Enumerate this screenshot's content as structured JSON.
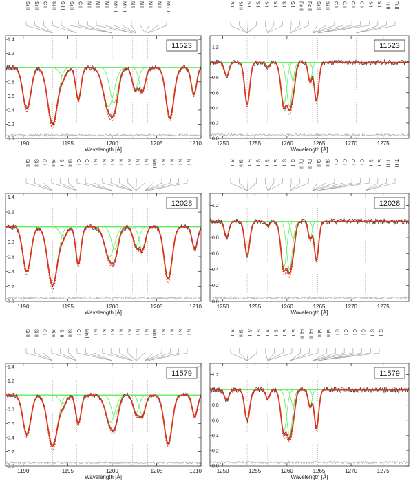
{
  "chart_data": [
    {
      "type": "line",
      "panel": "row1-left",
      "id_label": "11523",
      "xlabel": "Wavelength [Å]",
      "xlim": [
        1188,
        1210
      ],
      "ylim": [
        0.0,
        1.45
      ],
      "xticks": [
        1190,
        1195,
        1200,
        1205,
        1210
      ],
      "yticks": [
        0.0,
        0.2,
        0.4,
        0.6,
        0.8,
        1.0,
        1.2,
        1.4
      ],
      "line_ids": [
        "Si II",
        "Si II",
        "C I",
        "Si II",
        "S III",
        "Si II",
        "C I",
        "N I",
        "N I",
        "N I",
        "Mn II",
        "Mn II",
        "N I",
        "N I",
        "N I",
        "N I",
        "Mn II"
      ],
      "dotted_lines": [
        1193.3,
        1196.0,
        1200.0,
        1202.3,
        1202.7,
        1203.7,
        1204.0
      ],
      "absorptions": [
        {
          "center": 1190.4,
          "depth": 0.58,
          "width": 0.45
        },
        {
          "center": 1193.3,
          "depth": 0.8,
          "width": 0.55
        },
        {
          "center": 1194.5,
          "depth": 0.12,
          "width": 0.4
        },
        {
          "center": 1196.2,
          "depth": 0.45,
          "width": 0.3
        },
        {
          "center": 1199.6,
          "depth": 0.55,
          "width": 0.6
        },
        {
          "center": 1200.2,
          "depth": 0.5,
          "width": 0.45
        },
        {
          "center": 1202.6,
          "depth": 0.3,
          "width": 0.35
        },
        {
          "center": 1203.4,
          "depth": 0.33,
          "width": 0.35
        },
        {
          "center": 1206.5,
          "depth": 0.7,
          "width": 0.45
        },
        {
          "center": 1209.2,
          "depth": 0.38,
          "width": 0.3
        }
      ]
    },
    {
      "type": "line",
      "panel": "row1-right",
      "id_label": "11523",
      "xlabel": "Wavelength [Å]",
      "xlim": [
        1248,
        1279
      ],
      "ylim": [
        0.0,
        1.35
      ],
      "xticks": [
        1250,
        1255,
        1260,
        1265,
        1270,
        1275
      ],
      "yticks": [
        0.0,
        0.2,
        0.4,
        0.6,
        0.8,
        1.0,
        1.2
      ],
      "line_ids": [
        "S II",
        "Si II",
        "S II",
        "S II",
        "S II",
        "S II",
        "S II",
        "S II",
        "Fe II",
        "Fe II",
        "Si II",
        "Si II",
        "C I",
        "C I",
        "C I",
        "C I",
        "S II",
        "S II",
        "Ti II",
        "Ti II"
      ],
      "dotted_lines": [
        1253.8,
        1257.0,
        1260.5,
        1264.0,
        1264.8,
        1270.8
      ],
      "absorptions": [
        {
          "center": 1250.6,
          "depth": 0.18,
          "width": 0.35
        },
        {
          "center": 1253.8,
          "depth": 0.55,
          "width": 0.4
        },
        {
          "center": 1257.0,
          "depth": 0.06,
          "width": 0.3
        },
        {
          "center": 1259.5,
          "depth": 0.55,
          "width": 0.45
        },
        {
          "center": 1260.4,
          "depth": 0.58,
          "width": 0.45
        },
        {
          "center": 1261.0,
          "depth": 0.25,
          "width": 0.35
        },
        {
          "center": 1263.6,
          "depth": 0.25,
          "width": 0.3
        },
        {
          "center": 1264.6,
          "depth": 0.5,
          "width": 0.35
        }
      ]
    },
    {
      "type": "line",
      "panel": "row2-left",
      "id_label": "12028",
      "xlabel": "Wavelength [Å]",
      "xlim": [
        1188,
        1210
      ],
      "ylim": [
        0.0,
        1.45
      ],
      "xticks": [
        1190,
        1195,
        1200,
        1205,
        1210
      ],
      "yticks": [
        0.0,
        0.2,
        0.4,
        0.6,
        0.8,
        1.0,
        1.2,
        1.4
      ],
      "line_ids": [
        "Si II",
        "Si II",
        "C I",
        "Si II",
        "S III",
        "Si II",
        "C I",
        "C I",
        "N I",
        "N I",
        "N I",
        "N I",
        "N I",
        "N I",
        "N I",
        "Mn II",
        "N I",
        "N I",
        "N I",
        "N I"
      ],
      "dotted_lines": [
        1193.3,
        1196.0,
        1200.0,
        1202.3,
        1202.7,
        1203.7,
        1204.0
      ],
      "absorptions": [
        {
          "center": 1190.4,
          "depth": 0.6,
          "width": 0.45
        },
        {
          "center": 1193.3,
          "depth": 0.78,
          "width": 0.55
        },
        {
          "center": 1194.5,
          "depth": 0.12,
          "width": 0.4
        },
        {
          "center": 1196.2,
          "depth": 0.5,
          "width": 0.3
        },
        {
          "center": 1199.7,
          "depth": 0.4,
          "width": 0.55
        },
        {
          "center": 1200.3,
          "depth": 0.3,
          "width": 0.4
        },
        {
          "center": 1202.7,
          "depth": 0.25,
          "width": 0.35
        },
        {
          "center": 1203.4,
          "depth": 0.3,
          "width": 0.35
        },
        {
          "center": 1206.3,
          "depth": 0.7,
          "width": 0.45
        },
        {
          "center": 1209.3,
          "depth": 0.3,
          "width": 0.3
        }
      ]
    },
    {
      "type": "line",
      "panel": "row2-right",
      "id_label": "12028",
      "xlabel": "Wavelength [Å]",
      "xlim": [
        1248,
        1279
      ],
      "ylim": [
        0.0,
        1.35
      ],
      "xticks": [
        1250,
        1255,
        1260,
        1265,
        1270,
        1275
      ],
      "yticks": [
        0.0,
        0.2,
        0.4,
        0.6,
        0.8,
        1.0,
        1.2
      ],
      "line_ids": [
        "S II",
        "Si II",
        "S II",
        "S II",
        "S II",
        "S II",
        "S II",
        "S II",
        "Fe II",
        "Fe II",
        "Si II",
        "Si II",
        "C I",
        "C I",
        "C I",
        "C I",
        "S II",
        "S II",
        "Ti II",
        "Ti II"
      ],
      "dotted_lines": [
        1253.8,
        1257.0,
        1260.5,
        1264.0,
        1264.8,
        1272.2
      ],
      "absorptions": [
        {
          "center": 1250.6,
          "depth": 0.2,
          "width": 0.35
        },
        {
          "center": 1253.8,
          "depth": 0.42,
          "width": 0.4
        },
        {
          "center": 1257.0,
          "depth": 0.06,
          "width": 0.3
        },
        {
          "center": 1259.5,
          "depth": 0.58,
          "width": 0.45
        },
        {
          "center": 1260.4,
          "depth": 0.6,
          "width": 0.45
        },
        {
          "center": 1261.0,
          "depth": 0.22,
          "width": 0.35
        },
        {
          "center": 1263.6,
          "depth": 0.22,
          "width": 0.3
        },
        {
          "center": 1264.6,
          "depth": 0.48,
          "width": 0.35
        }
      ]
    },
    {
      "type": "line",
      "panel": "row3-left",
      "id_label": "11579",
      "xlabel": "Wavelength [Å]",
      "xlim": [
        1188,
        1210
      ],
      "ylim": [
        0.0,
        1.45
      ],
      "xticks": [
        1190,
        1195,
        1200,
        1205,
        1210
      ],
      "yticks": [
        0.0,
        0.2,
        0.4,
        0.6,
        0.8,
        1.0,
        1.2,
        1.4
      ],
      "line_ids": [
        "Si II",
        "Si II",
        "C I",
        "Si II",
        "S III",
        "Si II",
        "C I",
        "Mn II",
        "N I",
        "N I",
        "N I",
        "N I",
        "N I",
        "N I",
        "N I",
        "Mn II",
        "N I",
        "N I",
        "N I",
        "N I"
      ],
      "dotted_lines": [
        1193.3,
        1196.0,
        1200.0,
        1202.3,
        1202.7,
        1203.7,
        1204.0
      ],
      "absorptions": [
        {
          "center": 1190.4,
          "depth": 0.55,
          "width": 0.45
        },
        {
          "center": 1193.3,
          "depth": 0.72,
          "width": 0.55
        },
        {
          "center": 1194.5,
          "depth": 0.12,
          "width": 0.4
        },
        {
          "center": 1196.2,
          "depth": 0.4,
          "width": 0.3
        },
        {
          "center": 1199.8,
          "depth": 0.38,
          "width": 0.55
        },
        {
          "center": 1200.3,
          "depth": 0.3,
          "width": 0.4
        },
        {
          "center": 1202.7,
          "depth": 0.25,
          "width": 0.35
        },
        {
          "center": 1203.4,
          "depth": 0.28,
          "width": 0.35
        },
        {
          "center": 1206.3,
          "depth": 0.68,
          "width": 0.45
        },
        {
          "center": 1209.3,
          "depth": 0.3,
          "width": 0.3
        }
      ]
    },
    {
      "type": "line",
      "panel": "row3-right",
      "id_label": "11579",
      "xlabel": "Wavelength [Å]",
      "xlim": [
        1248,
        1279
      ],
      "ylim": [
        0.0,
        1.35
      ],
      "xticks": [
        1250,
        1255,
        1260,
        1265,
        1270,
        1275
      ],
      "yticks": [
        0.0,
        0.2,
        0.4,
        0.6,
        0.8,
        1.0,
        1.2
      ],
      "line_ids": [
        "S II",
        "Si II",
        "S II",
        "S II",
        "S II",
        "S II",
        "S II",
        "S II",
        "Fe II",
        "Fe II",
        "Si II",
        "Si II",
        "C I",
        "C I",
        "C I",
        "C I",
        "S II",
        "S II"
      ],
      "dotted_lines": [
        1253.8,
        1257.0,
        1260.5,
        1264.0,
        1264.8
      ],
      "absorptions": [
        {
          "center": 1250.6,
          "depth": 0.14,
          "width": 0.35
        },
        {
          "center": 1253.8,
          "depth": 0.4,
          "width": 0.4
        },
        {
          "center": 1257.0,
          "depth": 0.12,
          "width": 0.3
        },
        {
          "center": 1259.5,
          "depth": 0.55,
          "width": 0.45
        },
        {
          "center": 1260.4,
          "depth": 0.6,
          "width": 0.45
        },
        {
          "center": 1261.0,
          "depth": 0.22,
          "width": 0.35
        },
        {
          "center": 1263.6,
          "depth": 0.22,
          "width": 0.3
        },
        {
          "center": 1264.6,
          "depth": 0.5,
          "width": 0.35
        }
      ]
    }
  ],
  "colors": {
    "observed": "#444444",
    "model": "#d9361a",
    "components": "#66ee66",
    "residual": "#aaaaaa",
    "guide": "#999999",
    "continuum_level": "#b8f5b8"
  }
}
